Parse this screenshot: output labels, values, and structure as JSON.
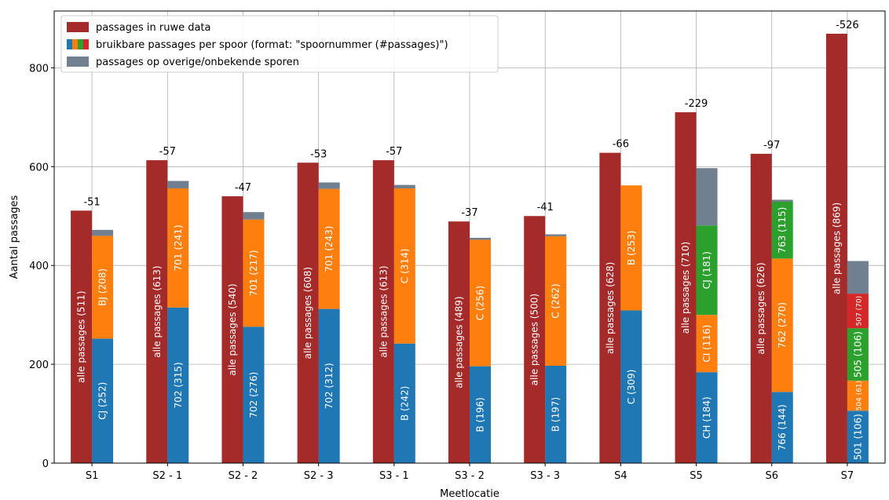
{
  "chart_data": {
    "type": "bar",
    "xlabel": "Meetlocatie",
    "ylabel": "Aantal passages",
    "ylim": [
      0,
      915
    ],
    "yticks": [
      0,
      200,
      400,
      600,
      800
    ],
    "grid": true,
    "legend_position": "top-left",
    "categories": [
      "S1",
      "S2 - 1",
      "S2 - 2",
      "S2 - 3",
      "S3 - 1",
      "S3 - 2",
      "S3 - 3",
      "S4",
      "S5",
      "S6",
      "S7"
    ],
    "legend": [
      {
        "label": "passages in ruwe data",
        "colors": [
          "#a52a2a"
        ]
      },
      {
        "label": "bruikbare passages per spoor (format: \"spoornummer (#passages)\")",
        "colors": [
          "#1f77b4",
          "#ff7f0e",
          "#2ca02c",
          "#d62728"
        ]
      },
      {
        "label": "passages op overige/onbekende sporen",
        "colors": [
          "#708090"
        ]
      }
    ],
    "raw": [
      {
        "value": 511,
        "label": "alle passages (511)",
        "diff": "-51"
      },
      {
        "value": 613,
        "label": "alle passages (613)",
        "diff": "-57"
      },
      {
        "value": 540,
        "label": "alle passages (540)",
        "diff": "-47"
      },
      {
        "value": 608,
        "label": "alle passages (608)",
        "diff": "-53"
      },
      {
        "value": 613,
        "label": "alle passages (613)",
        "diff": "-57"
      },
      {
        "value": 489,
        "label": "alle passages (489)",
        "diff": "-37"
      },
      {
        "value": 500,
        "label": "alle passages (500)",
        "diff": "-41"
      },
      {
        "value": 628,
        "label": "alle passages (628)",
        "diff": "-66"
      },
      {
        "value": 710,
        "label": "alle passages (710)",
        "diff": "-229"
      },
      {
        "value": 626,
        "label": "alle passages (626)",
        "diff": "-97"
      },
      {
        "value": 869,
        "label": "alle passages (869)",
        "diff": "-526"
      }
    ],
    "stacks": [
      {
        "segments": [
          {
            "value": 252,
            "label": "CJ (252)",
            "color": "#1f77b4"
          },
          {
            "value": 208,
            "label": "BJ (208)",
            "color": "#ff7f0e"
          }
        ],
        "other": 12
      },
      {
        "segments": [
          {
            "value": 315,
            "label": "702 (315)",
            "color": "#1f77b4"
          },
          {
            "value": 241,
            "label": "701 (241)",
            "color": "#ff7f0e"
          }
        ],
        "other": 15
      },
      {
        "segments": [
          {
            "value": 276,
            "label": "702 (276)",
            "color": "#1f77b4"
          },
          {
            "value": 217,
            "label": "701 (217)",
            "color": "#ff7f0e"
          }
        ],
        "other": 15
      },
      {
        "segments": [
          {
            "value": 312,
            "label": "702 (312)",
            "color": "#1f77b4"
          },
          {
            "value": 243,
            "label": "701 (243)",
            "color": "#ff7f0e"
          }
        ],
        "other": 13
      },
      {
        "segments": [
          {
            "value": 242,
            "label": "B (242)",
            "color": "#1f77b4"
          },
          {
            "value": 314,
            "label": "C (314)",
            "color": "#ff7f0e"
          }
        ],
        "other": 7
      },
      {
        "segments": [
          {
            "value": 196,
            "label": "B (196)",
            "color": "#1f77b4"
          },
          {
            "value": 256,
            "label": "C (256)",
            "color": "#ff7f0e"
          }
        ],
        "other": 4
      },
      {
        "segments": [
          {
            "value": 197,
            "label": "B (197)",
            "color": "#1f77b4"
          },
          {
            "value": 262,
            "label": "C (262)",
            "color": "#ff7f0e"
          }
        ],
        "other": 4
      },
      {
        "segments": [
          {
            "value": 309,
            "label": "C (309)",
            "color": "#1f77b4"
          },
          {
            "value": 253,
            "label": "B (253)",
            "color": "#ff7f0e"
          }
        ],
        "other": 0
      },
      {
        "segments": [
          {
            "value": 184,
            "label": "CH (184)",
            "color": "#1f77b4"
          },
          {
            "value": 116,
            "label": "CI (116)",
            "color": "#ff7f0e"
          },
          {
            "value": 181,
            "label": "CJ (181)",
            "color": "#2ca02c"
          }
        ],
        "other": 116
      },
      {
        "segments": [
          {
            "value": 144,
            "label": "766 (144)",
            "color": "#1f77b4"
          },
          {
            "value": 270,
            "label": "762 (270)",
            "color": "#ff7f0e"
          },
          {
            "value": 115,
            "label": "763 (115)",
            "color": "#2ca02c"
          }
        ],
        "other": 4
      },
      {
        "segments": [
          {
            "value": 106,
            "label": "501 (106)",
            "color": "#1f77b4"
          },
          {
            "value": 61,
            "label": "504 (61)",
            "color": "#ff7f0e"
          },
          {
            "value": 106,
            "label": "505 (106)",
            "color": "#2ca02c"
          },
          {
            "value": 70,
            "label": "507 (70)",
            "color": "#d62728"
          }
        ],
        "other": 66
      }
    ],
    "colors": {
      "raw": "#a52a2a",
      "other": "#708090"
    }
  }
}
